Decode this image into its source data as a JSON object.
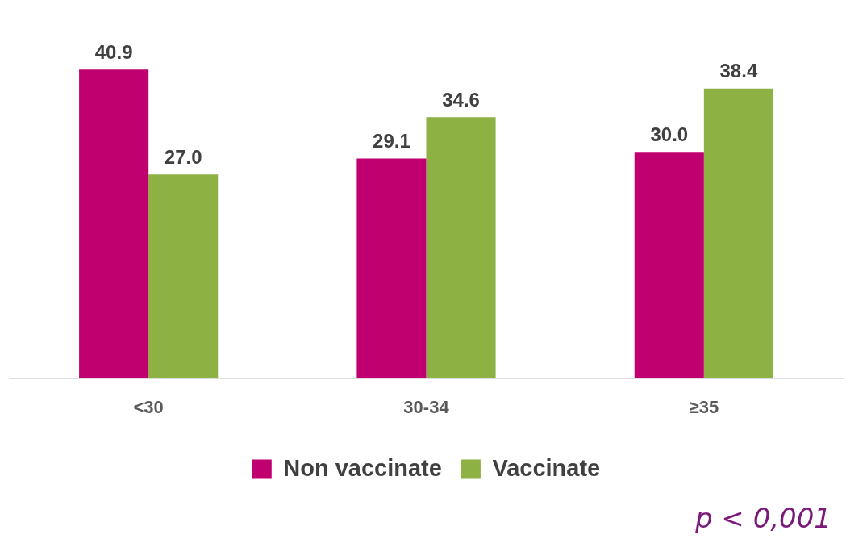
{
  "chart_data": {
    "type": "bar",
    "categories": [
      "<30",
      "30-34",
      "≥35"
    ],
    "series": [
      {
        "name": "Non vaccinate",
        "color": "#c0006f",
        "values": [
          40.9,
          29.1,
          30.0
        ],
        "value_labels": [
          "40.9",
          "29.1",
          "30.0"
        ]
      },
      {
        "name": "Vaccinate",
        "color": "#8db142",
        "values": [
          27.0,
          34.6,
          38.4
        ],
        "value_labels": [
          "27.0",
          "34.6",
          "38.4"
        ]
      }
    ],
    "grid": false,
    "legend": "bottom",
    "annotations": [
      "p < 0,001"
    ]
  }
}
